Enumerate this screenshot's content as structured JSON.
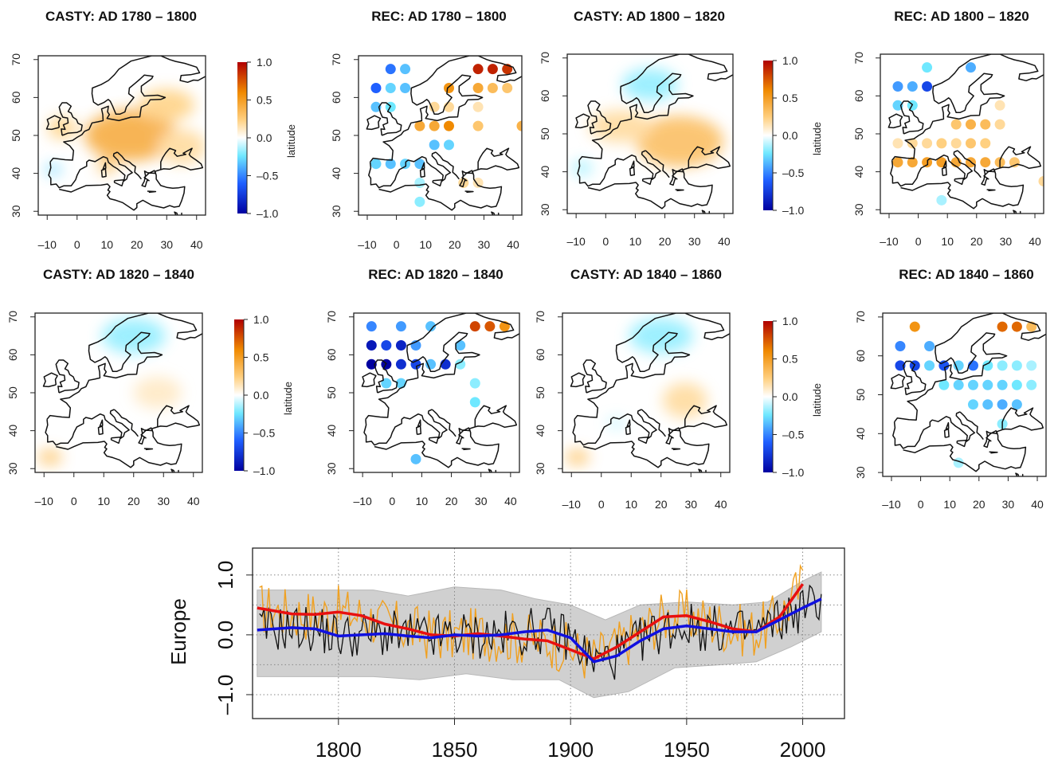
{
  "chart_data": [
    {
      "type": "heatmap",
      "title": "CASTY: AD 1780 – 1800",
      "x_ticks": [
        "–10",
        "0",
        "10",
        "20",
        "30",
        "40"
      ],
      "y_ticks": [
        "30",
        "40",
        "50",
        "60",
        "70"
      ],
      "colorbar": {
        "ticks": [
          "1.0",
          "0.5",
          "0.0",
          "–0.5",
          "–1.0"
        ],
        "label": "latitude"
      },
      "blobs": [
        {
          "lon": 18,
          "lat": 50,
          "rx": 58,
          "ry": 32,
          "value": 0.45
        },
        {
          "lon": 30,
          "lat": 58,
          "rx": 35,
          "ry": 20,
          "value": 0.25
        },
        {
          "lon": 35,
          "lat": 47,
          "rx": 30,
          "ry": 22,
          "value": 0.2
        },
        {
          "lon": -5,
          "lat": 52,
          "rx": 18,
          "ry": 14,
          "value": 0.25
        },
        {
          "lon": -8,
          "lat": 41,
          "rx": 10,
          "ry": 6,
          "value": -0.3
        },
        {
          "lon": 10,
          "lat": 42,
          "rx": 12,
          "ry": 10,
          "value": 0.3
        }
      ]
    },
    {
      "type": "scatter",
      "title": "REC: AD 1780 – 1800",
      "x_ticks": [
        "–10",
        "0",
        "10",
        "20",
        "30",
        "40"
      ],
      "y_ticks": [
        "30",
        "40",
        "50",
        "60",
        "70"
      ],
      "points": [
        [
          -2,
          67.5,
          -0.55
        ],
        [
          3,
          67.5,
          -0.35
        ],
        [
          -7,
          62.5,
          -0.6
        ],
        [
          -2,
          62.5,
          -0.3
        ],
        [
          3,
          62.5,
          -0.35
        ],
        [
          -7,
          57.5,
          -0.35
        ],
        [
          -2,
          57.5,
          -0.25
        ],
        [
          18,
          62.5,
          0.55
        ],
        [
          28,
          67.5,
          0.9
        ],
        [
          33,
          67.5,
          0.9
        ],
        [
          38,
          67.5,
          0.85
        ],
        [
          28,
          62.5,
          0.45
        ],
        [
          33,
          62.5,
          0.35
        ],
        [
          38,
          62.5,
          0.3
        ],
        [
          13,
          57.5,
          0.2
        ],
        [
          18,
          57.5,
          0.2
        ],
        [
          28,
          57.5,
          0.15
        ],
        [
          8,
          52.5,
          0.45
        ],
        [
          13,
          52.5,
          0.45
        ],
        [
          18,
          52.5,
          0.6
        ],
        [
          28,
          52.5,
          0.3
        ],
        [
          43,
          52.5,
          0.4
        ],
        [
          13,
          47.5,
          -0.35
        ],
        [
          18,
          47.5,
          -0.3
        ],
        [
          -7,
          42.5,
          -0.3
        ],
        [
          -2,
          42.5,
          -0.35
        ],
        [
          3,
          42.5,
          -0.3
        ],
        [
          8,
          42.5,
          -0.35
        ],
        [
          8,
          37.5,
          -0.15
        ],
        [
          23,
          37.5,
          0.2
        ],
        [
          28,
          37.5,
          0.15
        ],
        [
          8,
          32.5,
          -0.2
        ]
      ]
    },
    {
      "type": "heatmap",
      "title": "CASTY: AD 1800 – 1820",
      "x_ticks": [
        "–10",
        "0",
        "10",
        "20",
        "30",
        "40"
      ],
      "y_ticks": [
        "30",
        "40",
        "50",
        "60",
        "70"
      ],
      "colorbar": {
        "ticks": [
          "1.0",
          "0.5",
          "0.0",
          "–0.5",
          "–1.0"
        ],
        "label": "latitude"
      },
      "blobs": [
        {
          "lon": 25,
          "lat": 48,
          "rx": 55,
          "ry": 32,
          "value": 0.35
        },
        {
          "lon": 5,
          "lat": 52,
          "rx": 40,
          "ry": 20,
          "value": 0.2
        },
        {
          "lon": 15,
          "lat": 63,
          "rx": 35,
          "ry": 20,
          "value": -0.2
        },
        {
          "lon": -8,
          "lat": 41,
          "rx": 12,
          "ry": 8,
          "value": -0.2
        }
      ]
    },
    {
      "type": "scatter",
      "title": "REC: AD 1800 – 1820",
      "x_ticks": [
        "–10",
        "0",
        "10",
        "20",
        "30",
        "40"
      ],
      "y_ticks": [
        "30",
        "40",
        "50",
        "60",
        "70"
      ],
      "points": [
        [
          3,
          67.5,
          -0.25
        ],
        [
          18,
          67.5,
          -0.4
        ],
        [
          -7,
          62.5,
          -0.45
        ],
        [
          -2,
          62.5,
          -0.4
        ],
        [
          3,
          62.5,
          -0.7
        ],
        [
          -7,
          57.5,
          -0.3
        ],
        [
          -2,
          57.5,
          -0.25
        ],
        [
          28,
          57.5,
          0.15
        ],
        [
          13,
          52.5,
          0.3
        ],
        [
          18,
          52.5,
          0.4
        ],
        [
          23,
          52.5,
          0.35
        ],
        [
          28,
          52.5,
          0.2
        ],
        [
          -7,
          47.5,
          0.15
        ],
        [
          -2,
          47.5,
          0.2
        ],
        [
          3,
          47.5,
          0.2
        ],
        [
          8,
          47.5,
          0.25
        ],
        [
          13,
          47.5,
          0.2
        ],
        [
          18,
          47.5,
          0.3
        ],
        [
          23,
          47.5,
          0.25
        ],
        [
          -7,
          42.5,
          0.45
        ],
        [
          -2,
          42.5,
          0.45
        ],
        [
          3,
          42.5,
          0.5
        ],
        [
          8,
          42.5,
          0.5
        ],
        [
          13,
          42.5,
          0.45
        ],
        [
          18,
          42.5,
          0.45
        ],
        [
          23,
          42.5,
          0.45
        ],
        [
          28,
          42.5,
          0.35
        ],
        [
          33,
          42.5,
          0.3
        ],
        [
          8,
          32.5,
          -0.15
        ],
        [
          43,
          37.5,
          0.2
        ]
      ]
    },
    {
      "type": "heatmap",
      "title": "CASTY: AD 1820 – 1840",
      "x_ticks": [
        "–10",
        "0",
        "10",
        "20",
        "30",
        "40"
      ],
      "y_ticks": [
        "30",
        "40",
        "50",
        "60",
        "70"
      ],
      "colorbar": {
        "ticks": [
          "1.0",
          "0.5",
          "0.0",
          "–0.5",
          "–1.0"
        ],
        "label": "latitude"
      },
      "blobs": [
        {
          "lon": 20,
          "lat": 65,
          "rx": 40,
          "ry": 22,
          "value": -0.2
        },
        {
          "lon": 28,
          "lat": 50,
          "rx": 30,
          "ry": 20,
          "value": 0.12
        },
        {
          "lon": -8,
          "lat": 33,
          "rx": 15,
          "ry": 10,
          "value": 0.3
        }
      ]
    },
    {
      "type": "scatter",
      "title": "REC: AD 1820 – 1840",
      "x_ticks": [
        "–10",
        "0",
        "10",
        "20",
        "30",
        "40"
      ],
      "y_ticks": [
        "30",
        "40",
        "50",
        "60",
        "70"
      ],
      "points": [
        [
          -7,
          67.5,
          -0.5
        ],
        [
          3,
          67.5,
          -0.45
        ],
        [
          13,
          67.5,
          -0.35
        ],
        [
          28,
          67.5,
          0.8
        ],
        [
          33,
          67.5,
          0.75
        ],
        [
          38,
          67.5,
          0.55
        ],
        [
          -7,
          62.5,
          -0.9
        ],
        [
          -2,
          62.5,
          -0.7
        ],
        [
          3,
          62.5,
          -0.85
        ],
        [
          8,
          62.5,
          -0.45
        ],
        [
          23,
          62.5,
          -0.35
        ],
        [
          -7,
          57.5,
          -1.0
        ],
        [
          -2,
          57.5,
          -1.0
        ],
        [
          3,
          57.5,
          -0.8
        ],
        [
          8,
          57.5,
          -0.7
        ],
        [
          13,
          57.5,
          -0.35
        ],
        [
          18,
          57.5,
          -0.8
        ],
        [
          23,
          57.5,
          -0.2
        ],
        [
          -2,
          52.5,
          -0.3
        ],
        [
          3,
          52.5,
          -0.3
        ],
        [
          28,
          52.5,
          -0.2
        ],
        [
          28,
          47.5,
          -0.25
        ],
        [
          8,
          32.5,
          -0.35
        ]
      ]
    },
    {
      "type": "heatmap",
      "title": "CASTY: AD 1840 – 1860",
      "x_ticks": [
        "–10",
        "0",
        "10",
        "20",
        "30",
        "40"
      ],
      "y_ticks": [
        "30",
        "40",
        "50",
        "60",
        "70"
      ],
      "colorbar": {
        "ticks": [
          "1.0",
          "0.5",
          "0.0",
          "–0.5",
          "–1.0"
        ],
        "label": "latitude"
      },
      "blobs": [
        {
          "lon": 20,
          "lat": 65,
          "rx": 40,
          "ry": 22,
          "value": -0.2
        },
        {
          "lon": 28,
          "lat": 48,
          "rx": 28,
          "ry": 22,
          "value": 0.2
        },
        {
          "lon": -8,
          "lat": 33,
          "rx": 15,
          "ry": 10,
          "value": 0.3
        },
        {
          "lon": 5,
          "lat": 42,
          "rx": 12,
          "ry": 6,
          "value": -0.12
        }
      ]
    },
    {
      "type": "scatter",
      "title": "REC: AD 1840 – 1860",
      "x_ticks": [
        "–10",
        "0",
        "10",
        "20",
        "30",
        "40"
      ],
      "y_ticks": [
        "30",
        "40",
        "50",
        "60",
        "70"
      ],
      "points": [
        [
          -2,
          67.5,
          0.55
        ],
        [
          28,
          67.5,
          0.7
        ],
        [
          33,
          67.5,
          0.7
        ],
        [
          38,
          67.5,
          0.35
        ],
        [
          -7,
          62.5,
          -0.5
        ],
        [
          3,
          62.5,
          -0.4
        ],
        [
          -7,
          57.5,
          -0.7
        ],
        [
          -2,
          57.5,
          -0.7
        ],
        [
          3,
          57.5,
          -0.3
        ],
        [
          8,
          57.5,
          -0.65
        ],
        [
          13,
          57.5,
          -0.3
        ],
        [
          18,
          57.5,
          -0.55
        ],
        [
          23,
          57.5,
          -0.25
        ],
        [
          28,
          57.5,
          -0.2
        ],
        [
          33,
          57.5,
          -0.2
        ],
        [
          38,
          57.5,
          -0.15
        ],
        [
          8,
          52.5,
          -0.25
        ],
        [
          13,
          52.5,
          -0.3
        ],
        [
          18,
          52.5,
          -0.3
        ],
        [
          23,
          52.5,
          -0.3
        ],
        [
          28,
          52.5,
          -0.3
        ],
        [
          33,
          52.5,
          -0.25
        ],
        [
          38,
          52.5,
          -0.2
        ],
        [
          18,
          47.5,
          -0.3
        ],
        [
          23,
          47.5,
          -0.35
        ],
        [
          28,
          47.5,
          -0.4
        ],
        [
          33,
          47.5,
          -0.35
        ],
        [
          28,
          42.5,
          -0.2
        ],
        [
          13,
          32.5,
          -0.15
        ]
      ]
    },
    {
      "type": "line",
      "title": "",
      "ylabel": "Europe",
      "x_ticks": [
        "1800",
        "1850",
        "1900",
        "1950",
        "2000"
      ],
      "y_ticks": [
        "–1.0",
        "0.0",
        "1.0"
      ],
      "xlim": [
        1763,
        2018
      ],
      "ylim": [
        -1.4,
        1.45
      ],
      "red_smooth": [
        [
          1765,
          0.45
        ],
        [
          1780,
          0.35
        ],
        [
          1790,
          0.34
        ],
        [
          1800,
          0.38
        ],
        [
          1810,
          0.32
        ],
        [
          1820,
          0.18
        ],
        [
          1830,
          0.1
        ],
        [
          1840,
          0.0
        ],
        [
          1850,
          -0.02
        ],
        [
          1860,
          0.02
        ],
        [
          1870,
          -0.02
        ],
        [
          1880,
          -0.07
        ],
        [
          1890,
          -0.1
        ],
        [
          1900,
          -0.25
        ],
        [
          1910,
          -0.4
        ],
        [
          1920,
          -0.2
        ],
        [
          1930,
          0.05
        ],
        [
          1940,
          0.3
        ],
        [
          1950,
          0.32
        ],
        [
          1960,
          0.22
        ],
        [
          1970,
          0.1
        ],
        [
          1980,
          0.05
        ],
        [
          1990,
          0.3
        ],
        [
          2000,
          0.85
        ]
      ],
      "blue_smooth": [
        [
          1765,
          0.08
        ],
        [
          1780,
          0.12
        ],
        [
          1790,
          0.1
        ],
        [
          1800,
          -0.02
        ],
        [
          1810,
          0.0
        ],
        [
          1820,
          0.02
        ],
        [
          1830,
          -0.02
        ],
        [
          1840,
          -0.05
        ],
        [
          1850,
          0.0
        ],
        [
          1860,
          -0.02
        ],
        [
          1870,
          0.0
        ],
        [
          1880,
          0.05
        ],
        [
          1890,
          0.08
        ],
        [
          1900,
          -0.05
        ],
        [
          1910,
          -0.45
        ],
        [
          1920,
          -0.35
        ],
        [
          1930,
          -0.1
        ],
        [
          1940,
          0.1
        ],
        [
          1950,
          0.15
        ],
        [
          1960,
          0.1
        ],
        [
          1970,
          0.05
        ],
        [
          1980,
          0.05
        ],
        [
          1990,
          0.25
        ],
        [
          2000,
          0.45
        ],
        [
          2008,
          0.6
        ]
      ],
      "band": {
        "upper": [
          [
            1765,
            0.75
          ],
          [
            1790,
            0.75
          ],
          [
            1815,
            0.75
          ],
          [
            1830,
            0.65
          ],
          [
            1850,
            0.8
          ],
          [
            1870,
            0.75
          ],
          [
            1885,
            0.6
          ],
          [
            1900,
            0.5
          ],
          [
            1915,
            0.25
          ],
          [
            1930,
            0.5
          ],
          [
            1950,
            0.55
          ],
          [
            1970,
            0.5
          ],
          [
            1985,
            0.55
          ],
          [
            2000,
            0.9
          ],
          [
            2008,
            1.05
          ]
        ],
        "lower": [
          [
            1765,
            -0.7
          ],
          [
            1790,
            -0.7
          ],
          [
            1815,
            -0.7
          ],
          [
            1835,
            -0.75
          ],
          [
            1855,
            -0.65
          ],
          [
            1875,
            -0.75
          ],
          [
            1895,
            -0.75
          ],
          [
            1910,
            -1.05
          ],
          [
            1925,
            -0.95
          ],
          [
            1945,
            -0.55
          ],
          [
            1965,
            -0.5
          ],
          [
            1980,
            -0.45
          ],
          [
            1995,
            -0.2
          ],
          [
            2008,
            0.05
          ]
        ]
      }
    }
  ]
}
